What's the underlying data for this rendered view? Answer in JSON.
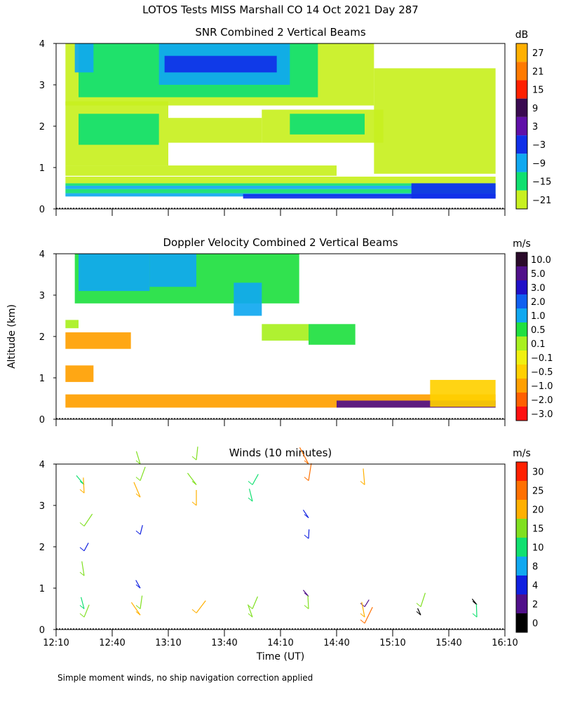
{
  "figure_title": "LOTOS Tests MISS Marshall CO  14 Oct 2021 Day 287",
  "shared_ylabel": "Altitude (km)",
  "footnote": "Simple moment winds, no ship navigation correction applied",
  "chart_data": [
    {
      "type": "heatmap",
      "title": "SNR Combined 2 Vertical Beams",
      "xlabel": "",
      "ylabel": "Altitude (km)",
      "xlim": [
        0,
        240
      ],
      "ylim": [
        0,
        4
      ],
      "x_ticks": [
        "12:10",
        "12:40",
        "13:10",
        "13:40",
        "14:10",
        "14:40",
        "15:10",
        "15:40",
        "16:10"
      ],
      "y_ticks": [
        "0",
        "1",
        "2",
        "3",
        "4"
      ],
      "x_tick_labels_shown": false,
      "colorbar": {
        "unit": "dB",
        "labels": [
          "27",
          "21",
          "15",
          "9",
          "3",
          "−3",
          "−9",
          "−15",
          "−21"
        ],
        "colors": [
          "#FFB000",
          "#FF7A00",
          "#FF2000",
          "#3A0A50",
          "#6010A8",
          "#1030E8",
          "#10A8F0",
          "#10E070",
          "#C8F020"
        ]
      },
      "regions": [
        {
          "x0": 5,
          "x1": 235,
          "y0": 0.3,
          "y1": 0.38,
          "color": "#10A8F0"
        },
        {
          "x0": 5,
          "x1": 235,
          "y0": 0.38,
          "y1": 0.48,
          "color": "#10E070"
        },
        {
          "x0": 5,
          "x1": 235,
          "y0": 0.48,
          "y1": 0.56,
          "color": "#10A8F0"
        },
        {
          "x0": 5,
          "x1": 235,
          "y0": 0.56,
          "y1": 0.62,
          "color": "#10E070"
        },
        {
          "x0": 5,
          "x1": 235,
          "y0": 0.62,
          "y1": 0.78,
          "color": "#C8F020"
        },
        {
          "x0": 100,
          "x1": 235,
          "y0": 0.25,
          "y1": 0.36,
          "color": "#1030E8"
        },
        {
          "x0": 190,
          "x1": 235,
          "y0": 0.25,
          "y1": 0.62,
          "color": "#1030E8"
        },
        {
          "x0": 5,
          "x1": 150,
          "y0": 0.8,
          "y1": 1.05,
          "color": "#C8F020"
        },
        {
          "x0": 5,
          "x1": 60,
          "y0": 1.05,
          "y1": 2.6,
          "color": "#C8F020"
        },
        {
          "x0": 12,
          "x1": 55,
          "y0": 1.55,
          "y1": 2.3,
          "color": "#10E070"
        },
        {
          "x0": 60,
          "x1": 110,
          "y0": 1.6,
          "y1": 2.2,
          "color": "#C8F020"
        },
        {
          "x0": 110,
          "x1": 175,
          "y0": 1.6,
          "y1": 2.4,
          "color": "#C8F020"
        },
        {
          "x0": 125,
          "x1": 165,
          "y0": 1.8,
          "y1": 2.3,
          "color": "#10E070"
        },
        {
          "x0": 5,
          "x1": 170,
          "y0": 2.5,
          "y1": 4.0,
          "color": "#C8F020"
        },
        {
          "x0": 12,
          "x1": 140,
          "y0": 2.7,
          "y1": 4.0,
          "color": "#10E070"
        },
        {
          "x0": 10,
          "x1": 20,
          "y0": 3.3,
          "y1": 4.0,
          "color": "#10A8F0"
        },
        {
          "x0": 55,
          "x1": 125,
          "y0": 3.0,
          "y1": 4.0,
          "color": "#10A8F0"
        },
        {
          "x0": 58,
          "x1": 118,
          "y0": 3.3,
          "y1": 3.7,
          "color": "#1030E8"
        },
        {
          "x0": 170,
          "x1": 235,
          "y0": 0.85,
          "y1": 3.4,
          "color": "#C8F020"
        }
      ]
    },
    {
      "type": "heatmap",
      "title": "Doppler Velocity Combined 2 Vertical Beams",
      "xlabel": "",
      "ylabel": "Altitude (km)",
      "xlim": [
        0,
        240
      ],
      "ylim": [
        0,
        4
      ],
      "x_ticks": [
        "12:10",
        "12:40",
        "13:10",
        "13:40",
        "14:10",
        "14:40",
        "15:10",
        "15:40",
        "16:10"
      ],
      "y_ticks": [
        "0",
        "1",
        "2",
        "3",
        "4"
      ],
      "x_tick_labels_shown": false,
      "colorbar": {
        "unit": "m/s",
        "labels": [
          "10.0",
          "5.0",
          "3.0",
          "2.0",
          "1.0",
          "0.5",
          "0.1",
          "−0.1",
          "−0.5",
          "−1.0",
          "−2.0",
          "−3.0"
        ],
        "colors": [
          "#2A0A2A",
          "#50108A",
          "#2010C8",
          "#1060F0",
          "#10A8F0",
          "#20E040",
          "#A8F020",
          "#F0F010",
          "#FFD000",
          "#FFA000",
          "#FF6000",
          "#FF1010"
        ]
      },
      "regions": [
        {
          "x0": 5,
          "x1": 235,
          "y0": 0.28,
          "y1": 0.6,
          "color": "#FFA000"
        },
        {
          "x0": 150,
          "x1": 235,
          "y0": 0.28,
          "y1": 0.45,
          "color": "#50108A"
        },
        {
          "x0": 200,
          "x1": 235,
          "y0": 0.3,
          "y1": 0.95,
          "color": "#FFD000"
        },
        {
          "x0": 5,
          "x1": 20,
          "y0": 0.9,
          "y1": 1.3,
          "color": "#FFA000"
        },
        {
          "x0": 5,
          "x1": 40,
          "y0": 1.7,
          "y1": 2.1,
          "color": "#FFA000"
        },
        {
          "x0": 5,
          "x1": 12,
          "y0": 2.2,
          "y1": 2.4,
          "color": "#A8F020"
        },
        {
          "x0": 10,
          "x1": 130,
          "y0": 2.8,
          "y1": 4.0,
          "color": "#20E040"
        },
        {
          "x0": 12,
          "x1": 50,
          "y0": 3.1,
          "y1": 4.0,
          "color": "#10A8F0"
        },
        {
          "x0": 50,
          "x1": 75,
          "y0": 3.2,
          "y1": 4.0,
          "color": "#10A8F0"
        },
        {
          "x0": 95,
          "x1": 110,
          "y0": 2.5,
          "y1": 3.3,
          "color": "#10A8F0"
        },
        {
          "x0": 110,
          "x1": 135,
          "y0": 1.9,
          "y1": 2.3,
          "color": "#A8F020"
        },
        {
          "x0": 135,
          "x1": 160,
          "y0": 1.8,
          "y1": 2.3,
          "color": "#20E040"
        }
      ]
    },
    {
      "type": "scatter",
      "title": "Winds (10 minutes)",
      "xlabel": "Time (UT)",
      "ylabel": "Altitude (km)",
      "xlim": [
        0,
        240
      ],
      "ylim": [
        0,
        4
      ],
      "x_ticks": [
        "12:10",
        "12:40",
        "13:10",
        "13:40",
        "14:10",
        "14:40",
        "15:10",
        "15:40",
        "16:10"
      ],
      "y_ticks": [
        "0",
        "1",
        "2",
        "3",
        "4"
      ],
      "x_tick_labels_shown": true,
      "colorbar": {
        "unit": "m/s",
        "labels": [
          "30",
          "25",
          "20",
          "15",
          "10",
          "8",
          "4",
          "2",
          "0"
        ],
        "colors": [
          "#FF2000",
          "#FF7000",
          "#FFB000",
          "#80E020",
          "#10E070",
          "#10A8F0",
          "#1020E0",
          "#50108A",
          "#000000"
        ]
      },
      "profiles": [
        {
          "x": 15,
          "points": [
            {
              "alt": 3.5,
              "speed": 12
            },
            {
              "alt": 3.3,
              "speed": 20
            },
            {
              "alt": 2.5,
              "speed": 18
            },
            {
              "alt": 1.3,
              "speed": 18
            },
            {
              "alt": 1.9,
              "speed": 5
            },
            {
              "alt": 0.5,
              "speed": 12
            },
            {
              "alt": 0.3,
              "speed": 15
            }
          ]
        },
        {
          "x": 45,
          "points": [
            {
              "alt": 4.0,
              "speed": 15
            },
            {
              "alt": 3.6,
              "speed": 18
            },
            {
              "alt": 3.2,
              "speed": 22
            },
            {
              "alt": 2.3,
              "speed": 6
            },
            {
              "alt": 1.0,
              "speed": 5
            },
            {
              "alt": 0.5,
              "speed": 15
            },
            {
              "alt": 0.35,
              "speed": 20
            }
          ]
        },
        {
          "x": 75,
          "points": [
            {
              "alt": 4.1,
              "speed": 15
            },
            {
              "alt": 3.5,
              "speed": 18
            },
            {
              "alt": 3.0,
              "speed": 20
            },
            {
              "alt": 0.4,
              "speed": 20
            }
          ]
        },
        {
          "x": 105,
          "points": [
            {
              "alt": 3.5,
              "speed": 12
            },
            {
              "alt": 3.1,
              "speed": 14
            },
            {
              "alt": 0.5,
              "speed": 15
            },
            {
              "alt": 0.3,
              "speed": 15
            }
          ]
        },
        {
          "x": 135,
          "points": [
            {
              "alt": 4.0,
              "speed": 28
            },
            {
              "alt": 3.6,
              "speed": 25
            },
            {
              "alt": 2.7,
              "speed": 6
            },
            {
              "alt": 2.2,
              "speed": 5
            },
            {
              "alt": 0.8,
              "speed": 3
            },
            {
              "alt": 0.5,
              "speed": 15
            }
          ]
        },
        {
          "x": 165,
          "points": [
            {
              "alt": 3.5,
              "speed": 22
            },
            {
              "alt": 0.55,
              "speed": 3
            },
            {
              "alt": 0.3,
              "speed": 20
            },
            {
              "alt": 0.15,
              "speed": 26
            }
          ]
        },
        {
          "x": 195,
          "points": [
            {
              "alt": 0.55,
              "speed": 18
            },
            {
              "alt": 0.35,
              "speed": 1
            }
          ]
        },
        {
          "x": 225,
          "points": [
            {
              "alt": 0.6,
              "speed": 1
            },
            {
              "alt": 0.3,
              "speed": 14
            }
          ]
        }
      ]
    }
  ]
}
